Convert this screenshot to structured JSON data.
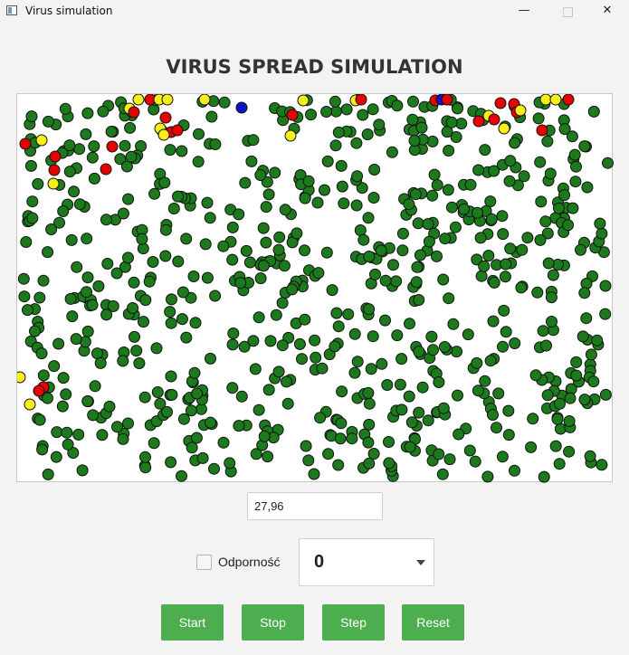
{
  "window": {
    "title": "Virus simulation",
    "controls": {
      "minimize": "—",
      "close": "✕"
    }
  },
  "heading": "VIRUS SPREAD SIMULATION",
  "simulation": {
    "colors": {
      "healthy": "#1c7a1c",
      "infected": "#e80000",
      "exposed": "#f7ef1a",
      "immune": "#0d13c6",
      "outline": "#111111"
    },
    "value_display": "27,96"
  },
  "controls": {
    "immunity_checkbox": {
      "label": "Odporność",
      "checked": false
    },
    "dropdown": {
      "selected": "0"
    }
  },
  "buttons": {
    "start": "Start",
    "stop": "Stop",
    "step": "Step",
    "reset": "Reset"
  }
}
